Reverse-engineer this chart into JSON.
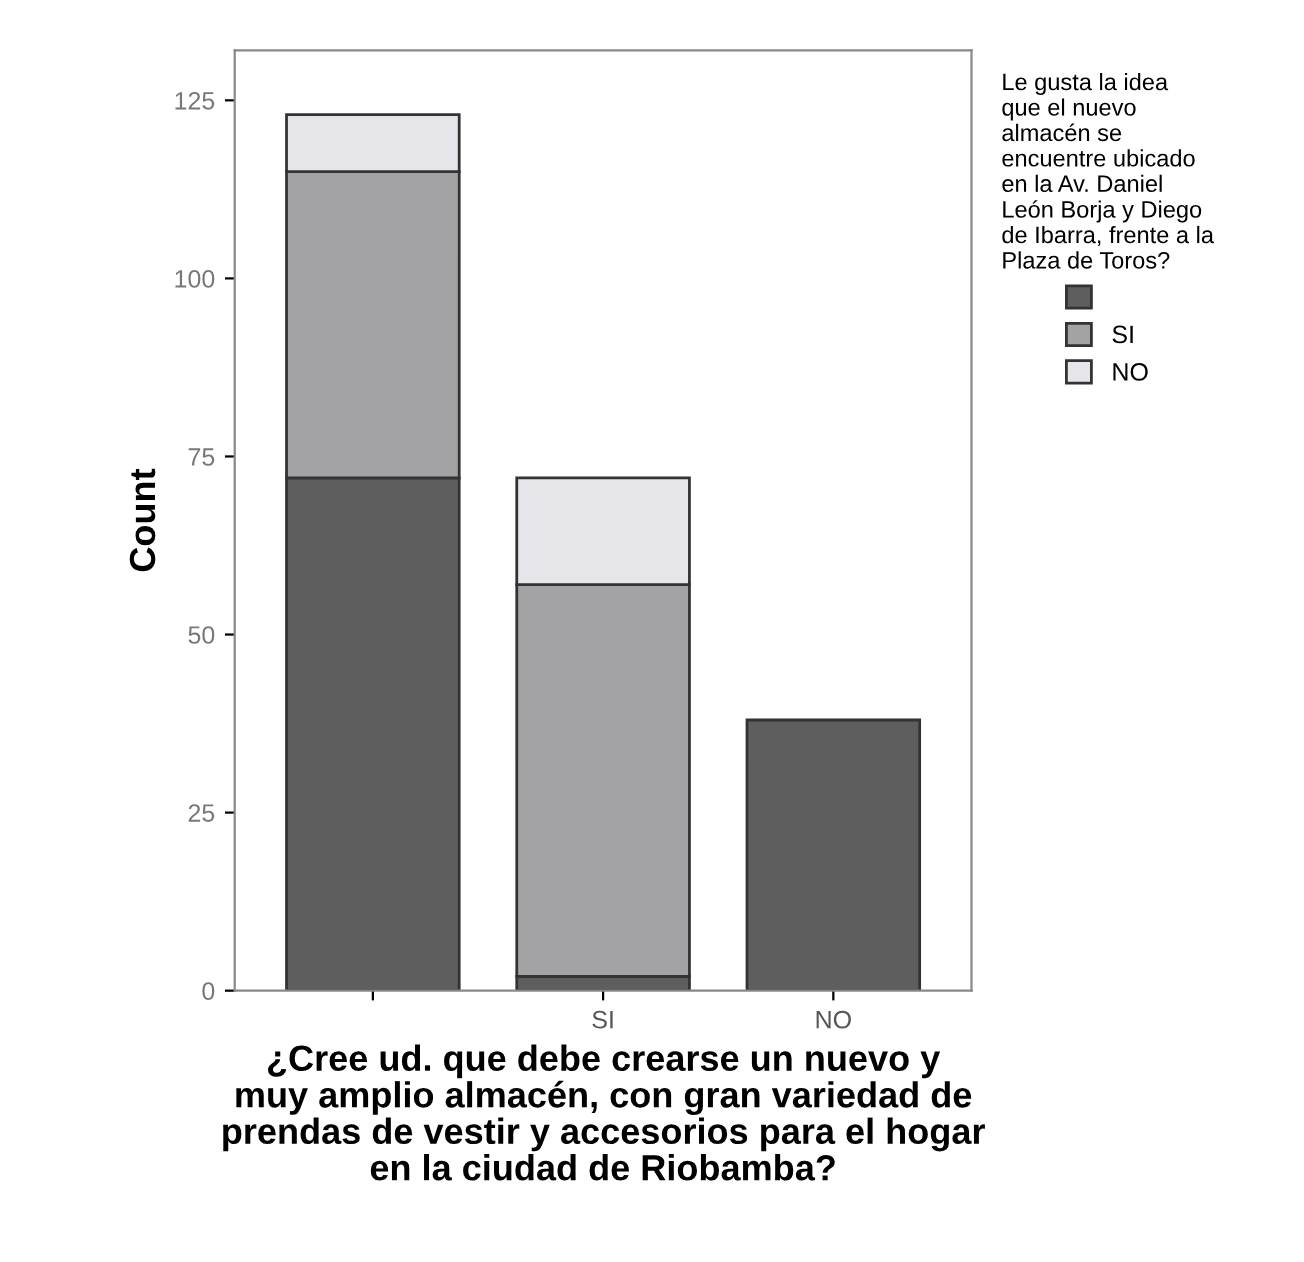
{
  "chart_data": {
    "type": "bar",
    "stacked": true,
    "categories": [
      null,
      "SI",
      "NO"
    ],
    "series": [
      {
        "color": "#5e5e5e",
        "values": [
          72,
          2,
          38
        ]
      },
      {
        "name": "SI",
        "color": "#a3a3a6",
        "values": [
          43,
          55,
          null
        ]
      },
      {
        "name": "NO",
        "color": "#e6e6ea",
        "values": [
          8,
          15,
          null
        ]
      }
    ],
    "xlabel": "¿Cree ud. que debe crearse un nuevo y\nmuy amplio almacén, con gran variedad de\nprendas de vestir y accesorios para el hogar\nen la ciudad de Riobamba?",
    "ylabel": "Count",
    "legend_title": "Le gusta la idea\nque el nuevo\nalmacén se\nencuentre ubicado\nen la Av. Daniel\nLeón Borja y Diego\nde Ibarra, frente a la\nPlaza de Toros?",
    "legend": "right",
    "grid": false,
    "ylim": [
      0,
      132
    ],
    "yticks": [
      0,
      25,
      50,
      75,
      100,
      125
    ]
  }
}
